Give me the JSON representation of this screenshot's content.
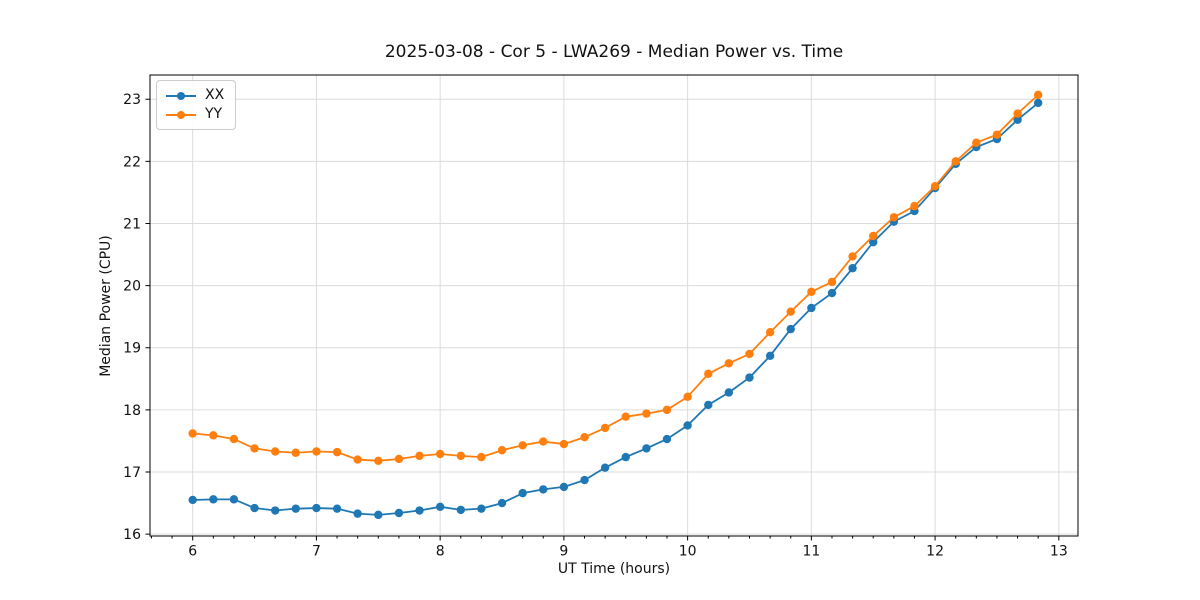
{
  "chart_data": {
    "type": "line",
    "title": "2025-03-08 - Cor 5 - LWA269 - Median Power vs. Time",
    "xlabel": "UT Time (hours)",
    "ylabel": "Median Power (CPU)",
    "xlim": [
      5.655,
      13.155
    ],
    "ylim": [
      15.97,
      23.39
    ],
    "xticks": [
      6,
      7,
      8,
      9,
      10,
      11,
      12,
      13
    ],
    "yticks": [
      16,
      17,
      18,
      19,
      20,
      21,
      22,
      23
    ],
    "x_minor_subdivisions": 6,
    "grid": true,
    "grid_color": "#dcdcdc",
    "spine_color": "#000000",
    "legend_position": "upper left",
    "x": [
      6.0,
      6.167,
      6.333,
      6.5,
      6.667,
      6.833,
      7.0,
      7.167,
      7.333,
      7.5,
      7.667,
      7.833,
      8.0,
      8.167,
      8.333,
      8.5,
      8.667,
      8.833,
      9.0,
      9.167,
      9.333,
      9.5,
      9.667,
      9.833,
      10.0,
      10.167,
      10.333,
      10.5,
      10.667,
      10.833,
      11.0,
      11.167,
      11.333,
      11.5,
      11.667,
      11.833,
      12.0,
      12.167,
      12.333,
      12.5,
      12.667,
      12.833
    ],
    "series": [
      {
        "name": "XX",
        "color": "#1f77b4",
        "values": [
          16.55,
          16.56,
          16.56,
          16.42,
          16.38,
          16.41,
          16.42,
          16.41,
          16.33,
          16.31,
          16.34,
          16.38,
          16.44,
          16.39,
          16.41,
          16.5,
          16.66,
          16.72,
          16.76,
          16.87,
          17.07,
          17.24,
          17.38,
          17.53,
          17.75,
          18.08,
          18.28,
          18.52,
          18.87,
          19.3,
          19.64,
          19.88,
          20.28,
          20.7,
          21.03,
          21.2,
          21.57,
          21.96,
          22.23,
          22.36,
          22.67,
          22.94
        ]
      },
      {
        "name": "YY",
        "color": "#ff7f0e",
        "values": [
          17.62,
          17.59,
          17.53,
          17.38,
          17.33,
          17.31,
          17.33,
          17.32,
          17.2,
          17.18,
          17.21,
          17.26,
          17.29,
          17.26,
          17.24,
          17.35,
          17.43,
          17.49,
          17.45,
          17.56,
          17.71,
          17.89,
          17.94,
          18.0,
          18.21,
          18.58,
          18.75,
          18.9,
          19.25,
          19.58,
          19.9,
          20.06,
          20.47,
          20.8,
          21.1,
          21.28,
          21.6,
          22.0,
          22.3,
          22.43,
          22.77,
          23.07
        ]
      }
    ]
  }
}
